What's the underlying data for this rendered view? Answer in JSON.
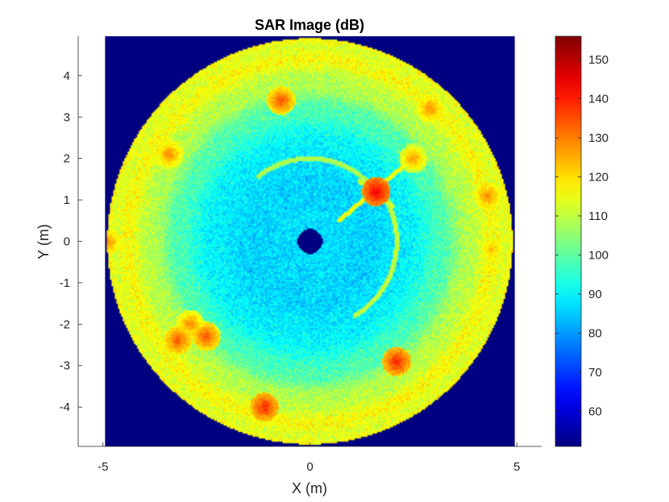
{
  "chart_data": {
    "type": "heatmap",
    "title": "SAR Image (dB)",
    "xlabel": "X (m)",
    "ylabel": "Y (m)",
    "xlim": [
      -5.6,
      5.6
    ],
    "ylim": [
      -4.95,
      4.95
    ],
    "x_ticks": [
      -5,
      0,
      5
    ],
    "x_tick_labels": [
      "-5",
      "0",
      "5"
    ],
    "y_ticks": [
      4,
      3,
      2,
      1,
      0,
      -1,
      -2,
      -3,
      -4
    ],
    "y_tick_labels": [
      "4",
      "3",
      "2",
      "1",
      "0",
      "-1",
      "-2",
      "-3",
      "-4"
    ],
    "image_extent": {
      "x": [
        -4.95,
        4.95
      ],
      "y": [
        -4.95,
        4.95
      ]
    },
    "disk_radius_m": 4.9,
    "center_hole_radius_m": 0.3,
    "background_value_db": 51,
    "colormap": "jet",
    "colorbar": {
      "range": [
        51,
        156
      ],
      "ticks": [
        150,
        140,
        130,
        120,
        110,
        100,
        90,
        80,
        70,
        60
      ],
      "tick_labels": [
        "150",
        "140",
        "130",
        "120",
        "110",
        "100",
        "90",
        "80",
        "70",
        "60"
      ]
    },
    "grid": false,
    "radial_profile_db": [
      {
        "r": 0.3,
        "db": 87
      },
      {
        "r": 1.5,
        "db": 86
      },
      {
        "r": 2.5,
        "db": 90
      },
      {
        "r": 3.3,
        "db": 100
      },
      {
        "r": 4.0,
        "db": 112
      },
      {
        "r": 4.9,
        "db": 117
      }
    ],
    "features": {
      "arcs": [
        {
          "cx": 0,
          "cy": 0,
          "r": 2.0,
          "start_deg": 40,
          "end_deg": 130,
          "db": 108
        },
        {
          "cx": 0,
          "cy": 0,
          "r": 2.1,
          "start_deg": -60,
          "end_deg": 40,
          "db": 110
        }
      ],
      "lines": [
        {
          "x1": 0.7,
          "y1": 0.5,
          "x2": 2.6,
          "y2": 2.1,
          "db": 115
        },
        {
          "x1": 1.2,
          "y1": 1.45,
          "x2": 2.0,
          "y2": 0.85,
          "db": 112
        }
      ],
      "hotspots": [
        {
          "x": 1.6,
          "y": 1.2,
          "db": 145
        },
        {
          "x": 2.1,
          "y": -2.9,
          "db": 140
        },
        {
          "x": -2.5,
          "y": -2.3,
          "db": 135
        },
        {
          "x": -3.2,
          "y": -2.4,
          "db": 135
        },
        {
          "x": -1.1,
          "y": -4.0,
          "db": 140
        },
        {
          "x": -4.9,
          "y": 0.0,
          "db": 130
        },
        {
          "x": -3.4,
          "y": 2.1,
          "db": 130
        },
        {
          "x": -0.7,
          "y": 3.4,
          "db": 135
        },
        {
          "x": 2.9,
          "y": 3.2,
          "db": 130
        },
        {
          "x": 4.3,
          "y": 1.1,
          "db": 130
        },
        {
          "x": 2.5,
          "y": 2.0,
          "db": 128
        },
        {
          "x": -2.9,
          "y": -2.0,
          "db": 130
        },
        {
          "x": 4.4,
          "y": -0.2,
          "db": 125
        }
      ]
    }
  }
}
